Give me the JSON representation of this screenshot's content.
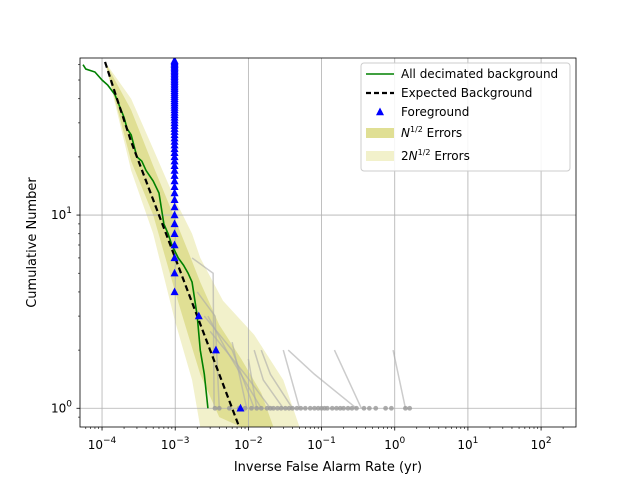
{
  "chart_data": {
    "type": "line",
    "xlabel": "Inverse False Alarm Rate (yr)",
    "ylabel": "Cumulative Number",
    "xscale": "log",
    "yscale": "log",
    "xlim": [
      5e-05,
      300
    ],
    "ylim": [
      0.8,
      65
    ],
    "grid": true,
    "x_ticks": [
      {
        "value": 0.0001,
        "base": "10",
        "exp": "−4"
      },
      {
        "value": 0.001,
        "base": "10",
        "exp": "−3"
      },
      {
        "value": 0.01,
        "base": "10",
        "exp": "−2"
      },
      {
        "value": 0.1,
        "base": "10",
        "exp": "−1"
      },
      {
        "value": 1,
        "base": "10",
        "exp": "0"
      },
      {
        "value": 10,
        "base": "10",
        "exp": "1"
      },
      {
        "value": 100,
        "base": "10",
        "exp": "2"
      }
    ],
    "y_ticks": [
      {
        "value": 1,
        "base": "10",
        "exp": "0"
      },
      {
        "value": 10,
        "base": "10",
        "exp": "1"
      }
    ],
    "legend": {
      "position": "upper right",
      "entries": [
        {
          "label": "All decimated background",
          "style": "green-line"
        },
        {
          "label": "Expected Background",
          "style": "black-dashed"
        },
        {
          "label": "Foreground",
          "style": "blue-triangle"
        },
        {
          "label_pre": "",
          "label_base": "N",
          "label_sup": "1/2",
          "label_post": " Errors",
          "style": "band-dark"
        },
        {
          "label_pre": "2",
          "label_base": "N",
          "label_sup": "1/2",
          "label_post": " Errors",
          "style": "band-light"
        }
      ]
    },
    "colors": {
      "background_line": "#008000",
      "expected": "#000000",
      "foreground": "#0000ff",
      "band_dark": "#e0df94",
      "band_light": "#f2f1cb",
      "decimated": "#aaaaaa",
      "grid": "#b0b0b0"
    },
    "series": [
      {
        "name": "All decimated background",
        "x": [
          5.5e-05,
          6e-05,
          8e-05,
          0.0001,
          0.00012,
          0.00015,
          0.0002,
          0.00022,
          0.00025,
          0.0003,
          0.00035,
          0.0004,
          0.0005,
          0.0006,
          0.0007,
          0.0008,
          0.0009,
          0.0011,
          0.0013,
          0.0015,
          0.0017,
          0.002,
          0.0022,
          0.0025,
          0.0028
        ],
        "y": [
          60,
          57,
          55,
          50,
          47,
          42,
          32,
          28,
          26,
          20,
          19,
          17,
          15,
          13,
          9,
          8,
          7,
          6,
          5.5,
          5,
          4.5,
          3,
          2,
          1.5,
          1
        ]
      },
      {
        "name": "Expected Background",
        "x": [
          0.00011,
          0.00016,
          0.00025,
          0.0004,
          0.0006,
          0.001,
          0.0015,
          0.002,
          0.003,
          0.004,
          0.005,
          0.006,
          0.0075
        ],
        "y": [
          62,
          40,
          24,
          15,
          10,
          6,
          4,
          3,
          2,
          1.5,
          1.2,
          1,
          0.8
        ]
      },
      {
        "name": "Foreground",
        "x": [
          0.00098,
          0.00098,
          0.00098,
          0.00098,
          0.00098,
          0.00098,
          0.00098,
          0.00098,
          0.00098,
          0.00098,
          0.00098,
          0.00098,
          0.00098,
          0.00098,
          0.00098,
          0.00098,
          0.00098,
          0.00098,
          0.00098,
          0.00098,
          0.00098,
          0.00098,
          0.00098,
          0.00098,
          0.00098,
          0.00098,
          0.00098,
          0.00098,
          0.00098,
          0.00098,
          0.00098,
          0.00098,
          0.00098,
          0.00098,
          0.00098,
          0.00098,
          0.00098,
          0.00098,
          0.00098,
          0.00098,
          0.00098,
          0.00098,
          0.00098,
          0.00098,
          0.00098,
          0.00098,
          0.00098,
          0.00098,
          0.00098,
          0.00098,
          0.00098,
          0.00098,
          0.00098,
          0.00098,
          0.00098,
          0.00098,
          0.00098,
          0.00098,
          0.00098,
          0.00098,
          0.0021,
          0.0036,
          0.0078
        ],
        "y": [
          4,
          5,
          6,
          7,
          8,
          9,
          10,
          11,
          12,
          13,
          14,
          15,
          16,
          17,
          18,
          19,
          20,
          21,
          22,
          23,
          24,
          25,
          26,
          27,
          28,
          29,
          30,
          31,
          32,
          33,
          34,
          35,
          36,
          37,
          38,
          39,
          40,
          41,
          42,
          43,
          44,
          45,
          46,
          47,
          48,
          49,
          50,
          51,
          52,
          53,
          54,
          55,
          56,
          57,
          58,
          59,
          60,
          61,
          62,
          63,
          3,
          2,
          1
        ]
      }
    ],
    "bands": [
      {
        "style": "light",
        "x": [
          0.00011,
          0.00025,
          0.0005,
          0.001,
          0.0017,
          0.0022,
          0.0045,
          0.012,
          0.03,
          0.05
        ],
        "upper": [
          62,
          40,
          22,
          12,
          8,
          6,
          3.6,
          2.4,
          1.4,
          0.8
        ],
        "lower": [
          62,
          17,
          8,
          2.8,
          1.4,
          0.8,
          0.8,
          0.8,
          0.8,
          0.8
        ]
      },
      {
        "style": "dark",
        "x": [
          0.00011,
          0.00025,
          0.0005,
          0.001,
          0.0015,
          0.0022,
          0.004,
          0.008,
          0.015,
          0.022
        ],
        "upper": [
          62,
          35,
          18,
          9.5,
          6.5,
          4.5,
          2.7,
          1.8,
          1.2,
          0.8
        ],
        "lower": [
          62,
          19,
          10,
          4,
          2.4,
          1.5,
          0.9,
          0.8,
          0.8,
          0.8
        ]
      }
    ],
    "decimated_curves": [
      {
        "x": [
          0.0017,
          0.0033,
          0.0034
        ],
        "y": [
          6,
          5,
          1
        ]
      },
      {
        "x": [
          0.002,
          0.0035,
          0.004
        ],
        "y": [
          4,
          3,
          1
        ]
      },
      {
        "x": [
          0.0025,
          0.006,
          0.012
        ],
        "y": [
          3,
          2,
          1
        ]
      },
      {
        "x": [
          0.003,
          0.009,
          0.02
        ],
        "y": [
          2.5,
          1.5,
          1
        ]
      },
      {
        "x": [
          0.0028,
          0.005,
          0.015
        ],
        "y": [
          3,
          2,
          1
        ]
      },
      {
        "x": [
          0.006,
          0.0095
        ],
        "y": [
          2.2,
          1
        ]
      },
      {
        "x": [
          0.01,
          0.013
        ],
        "y": [
          1.8,
          1
        ]
      },
      {
        "x": [
          0.012,
          0.016,
          0.03
        ],
        "y": [
          2,
          1.4,
          1
        ]
      },
      {
        "x": [
          0.015,
          0.02,
          0.04
        ],
        "y": [
          2,
          1.5,
          1
        ]
      },
      {
        "x": [
          0.03,
          0.05
        ],
        "y": [
          2,
          1
        ]
      },
      {
        "x": [
          0.035,
          0.08,
          0.3
        ],
        "y": [
          2,
          1.5,
          1
        ]
      },
      {
        "x": [
          0.15,
          0.35
        ],
        "y": [
          2,
          1
        ]
      },
      {
        "x": [
          0.95,
          1.4
        ],
        "y": [
          2,
          1
        ]
      }
    ],
    "decimated_points": [
      0.0035,
      0.004,
      0.0055,
      0.0075,
      0.009,
      0.011,
      0.013,
      0.015,
      0.018,
      0.02,
      0.022,
      0.025,
      0.028,
      0.032,
      0.036,
      0.04,
      0.046,
      0.052,
      0.06,
      0.07,
      0.08,
      0.09,
      0.1,
      0.11,
      0.12,
      0.14,
      0.16,
      0.18,
      0.2,
      0.23,
      0.26,
      0.3,
      0.38,
      0.45,
      0.55,
      0.75,
      0.9,
      1.4,
      1.6
    ]
  }
}
